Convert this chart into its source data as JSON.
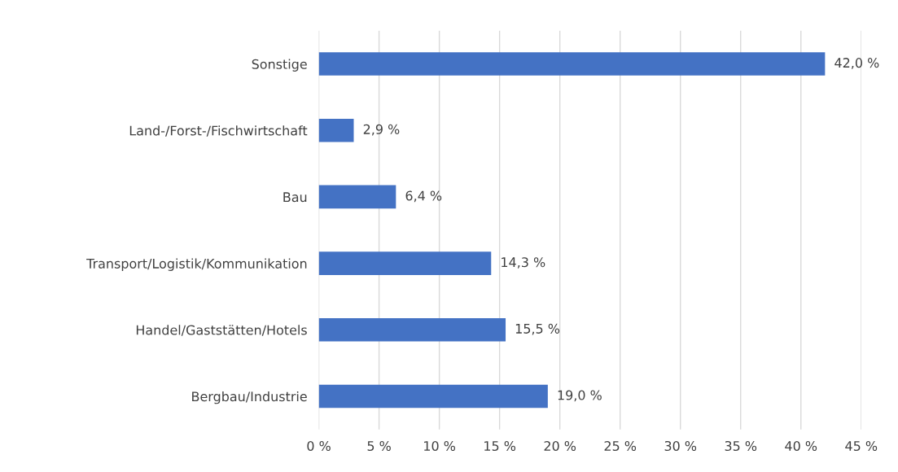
{
  "chart_data": {
    "type": "bar",
    "orientation": "horizontal",
    "categories": [
      "Sonstige",
      "Land-/Forst-/Fischwirtschaft",
      "Bau",
      "Transport/Logistik/Kommunikation",
      "Handel/Gaststätten/Hotels",
      "Bergbau/Industrie"
    ],
    "values": [
      42.0,
      2.9,
      6.4,
      14.3,
      15.5,
      19.0
    ],
    "value_labels": [
      "42,0 %",
      "2,9 %",
      "6,4 %",
      "14,3 %",
      "15,5 %",
      "19,0 %"
    ],
    "color": "#4472c4",
    "xlim": [
      0,
      45
    ],
    "xticks": [
      {
        "value": 0,
        "label": "0 %"
      },
      {
        "value": 5,
        "label": "5 %"
      },
      {
        "value": 10,
        "label": "10 %"
      },
      {
        "value": 15,
        "label": "15 %"
      },
      {
        "value": 20,
        "label": "20 %"
      },
      {
        "value": 25,
        "label": "25 %"
      },
      {
        "value": 30,
        "label": "30 %"
      },
      {
        "value": 35,
        "label": "35 %"
      },
      {
        "value": 40,
        "label": "40 %"
      },
      {
        "value": 45,
        "label": "45 %"
      }
    ],
    "grid": "x"
  }
}
